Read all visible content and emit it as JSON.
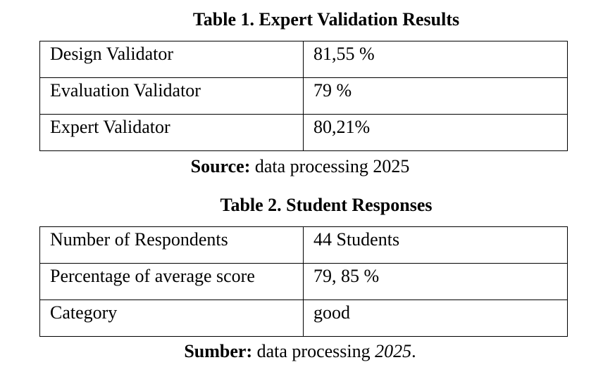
{
  "table1": {
    "caption": "Table 1. Expert Validation Results",
    "rows": [
      {
        "label": "Design Validator",
        "value": "81,55 %"
      },
      {
        "label": "Evaluation Validator",
        "value": "79 %"
      },
      {
        "label": "Expert Validator",
        "value": "80,21%"
      }
    ],
    "source_label": "Source:",
    "source_text": " data processing 2025"
  },
  "table2": {
    "caption": "Table 2. Student Responses",
    "rows": [
      {
        "label": "Number of Respondents",
        "value": "44 Students"
      },
      {
        "label": "Percentage of average score",
        "value": "79, 85 %"
      },
      {
        "label": "Category",
        "value": "good"
      }
    ],
    "source_label": "Sumber:",
    "source_text": " data processing ",
    "source_year": "2025",
    "source_end": "."
  }
}
